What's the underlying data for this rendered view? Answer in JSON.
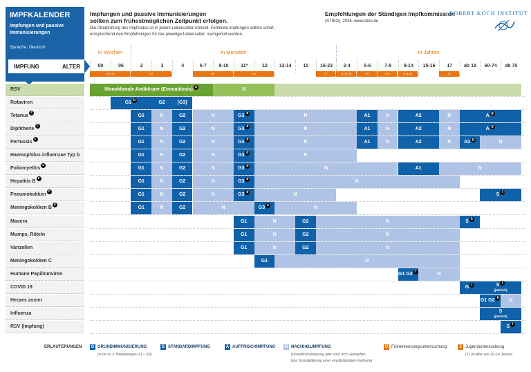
{
  "brand": {
    "title": "IMPFKALENDER",
    "subtitle": "Impfungen und passive Immunisierungen",
    "language": "Sprache: Deutsch"
  },
  "agebar": {
    "left": "IMPFUNG",
    "right": "ALTER"
  },
  "intro": {
    "headline1": "Impfungen und passive Immunisierungen",
    "headline2": "sollten zum frühestmöglichen Zeitpunkt erfolgen.",
    "text1": "Die Überprüfung des Impfstatus ist in jedem Lebensalter sinnvoll. Fehlende Impfungen sollten sofort,",
    "text2": "entsprechend den Empfehlungen für das jeweilige Lebensalter, nachgeholt werden."
  },
  "stiko": {
    "title": "Empfehlungen der Ständigen Impfkommission",
    "sub": "(STIKO), 2025. www.stiko.de"
  },
  "rki": {
    "name": "ROBERT KOCH INSTITUT"
  },
  "groups": [
    {
      "label": "in Wochen",
      "from": 0,
      "to": 1
    },
    {
      "label": "in Monaten",
      "from": 2,
      "to": 11
    },
    {
      "label": "in Jahren",
      "from": 12,
      "to": 20
    }
  ],
  "columns": [
    "00",
    "06",
    "2",
    "3",
    "4",
    "5-7",
    "8-10",
    "11*",
    "12",
    "13-14",
    "15",
    "16-23",
    "2-4",
    "5-6",
    "7-8",
    "9-14",
    "15-16",
    "17",
    "ab 18",
    "60-74",
    "ab 75"
  ],
  "exams": [
    {
      "label": "U2/U3",
      "from": 0,
      "to": 1
    },
    {
      "label": "U4",
      "from": 2,
      "to": 3
    },
    {
      "label": "U5",
      "from": 5,
      "to": 6
    },
    {
      "label": "U6",
      "from": 7,
      "to": 8
    },
    {
      "label": "U7",
      "from": 11,
      "to": 11
    },
    {
      "label": "U7a/U8",
      "from": 12,
      "to": 12
    },
    {
      "label": "U9",
      "from": 13,
      "to": 13
    },
    {
      "label": "U10",
      "from": 14,
      "to": 14
    },
    {
      "label": "U11/J1",
      "from": 15,
      "to": 15
    },
    {
      "label": "J2",
      "from": 17,
      "to": 17
    }
  ],
  "rows": [
    {
      "name": "RSV",
      "fn": "",
      "green": true,
      "segs": [
        {
          "t": "GR1",
          "label": "Monoklonale Antikörper (Einmaldosis)",
          "fn": "a",
          "from": 0,
          "to": 5
        },
        {
          "t": "GR2",
          "label": "N",
          "from": 6,
          "to": 8
        },
        {
          "t": "GR3",
          "label": "",
          "from": 9,
          "to": 20
        }
      ]
    },
    {
      "name": "Rotaviren",
      "fn": "",
      "segs": [
        {
          "t": "G",
          "label": "G1",
          "fn": "b",
          "from": 1,
          "to": 2
        },
        {
          "t": "G",
          "label": "G2",
          "from": 3,
          "to": 3
        },
        {
          "t": "G",
          "label": "(G3)",
          "from": 4,
          "to": 4
        }
      ]
    },
    {
      "name": "Tetanus",
      "fn": "c",
      "segs": [
        {
          "t": "G",
          "label": "G1",
          "from": 2,
          "to": 2
        },
        {
          "t": "N",
          "label": "N",
          "from": 3,
          "to": 3
        },
        {
          "t": "G",
          "label": "G2",
          "from": 4,
          "to": 4
        },
        {
          "t": "N",
          "label": "N",
          "from": 5,
          "to": 6
        },
        {
          "t": "G",
          "label": "G3",
          "fn": "d",
          "from": 7,
          "to": 7
        },
        {
          "t": "N",
          "label": "N",
          "from": 8,
          "to": 12
        },
        {
          "t": "A",
          "label": "A1",
          "from": 13,
          "to": 13
        },
        {
          "t": "N",
          "label": "N",
          "from": 14,
          "to": 14
        },
        {
          "t": "A",
          "label": "A2",
          "from": 15,
          "to": 16
        },
        {
          "t": "N",
          "label": "N",
          "from": 17,
          "to": 17
        },
        {
          "t": "A",
          "label": "A",
          "fn": "g",
          "from": 18,
          "to": 20
        }
      ]
    },
    {
      "name": "Diphtherie",
      "fn": "c",
      "segs": [
        {
          "t": "G",
          "label": "G1",
          "from": 2,
          "to": 2
        },
        {
          "t": "N",
          "label": "N",
          "from": 3,
          "to": 3
        },
        {
          "t": "G",
          "label": "G2",
          "from": 4,
          "to": 4
        },
        {
          "t": "N",
          "label": "N",
          "from": 5,
          "to": 6
        },
        {
          "t": "G",
          "label": "G3",
          "fn": "d",
          "from": 7,
          "to": 7
        },
        {
          "t": "N",
          "label": "N",
          "from": 8,
          "to": 12
        },
        {
          "t": "A",
          "label": "A1",
          "from": 13,
          "to": 13
        },
        {
          "t": "N",
          "label": "N",
          "from": 14,
          "to": 14
        },
        {
          "t": "A",
          "label": "A2",
          "from": 15,
          "to": 16
        },
        {
          "t": "N",
          "label": "N",
          "from": 17,
          "to": 17
        },
        {
          "t": "A",
          "label": "A",
          "fn": "g",
          "from": 18,
          "to": 20
        }
      ]
    },
    {
      "name": "Pertussis",
      "fn": "c",
      "segs": [
        {
          "t": "G",
          "label": "G1",
          "from": 2,
          "to": 2
        },
        {
          "t": "N",
          "label": "N",
          "from": 3,
          "to": 3
        },
        {
          "t": "G",
          "label": "G2",
          "from": 4,
          "to": 4
        },
        {
          "t": "N",
          "label": "N",
          "from": 5,
          "to": 6
        },
        {
          "t": "G",
          "label": "G3",
          "fn": "d",
          "from": 7,
          "to": 7
        },
        {
          "t": "N",
          "label": "N",
          "from": 8,
          "to": 12
        },
        {
          "t": "A",
          "label": "A1",
          "from": 13,
          "to": 13
        },
        {
          "t": "N",
          "label": "N",
          "from": 14,
          "to": 14
        },
        {
          "t": "A",
          "label": "A2",
          "from": 15,
          "to": 16
        },
        {
          "t": "N",
          "label": "N",
          "from": 17,
          "to": 17
        },
        {
          "t": "A",
          "label": "A3",
          "fn": "g",
          "from": 18,
          "to": 18
        },
        {
          "t": "N",
          "label": "N",
          "from": 19,
          "to": 20
        }
      ]
    },
    {
      "name": "Haemophilus influenzae Typ b",
      "fn": "c",
      "segs": [
        {
          "t": "G",
          "label": "G1",
          "from": 2,
          "to": 2
        },
        {
          "t": "N",
          "label": "N",
          "from": 3,
          "to": 3
        },
        {
          "t": "G",
          "label": "G2",
          "from": 4,
          "to": 4
        },
        {
          "t": "N",
          "label": "N",
          "from": 5,
          "to": 6
        },
        {
          "t": "G",
          "label": "G3",
          "fn": "d",
          "from": 7,
          "to": 7
        },
        {
          "t": "N",
          "label": "N",
          "from": 8,
          "to": 12
        }
      ]
    },
    {
      "name": "Poliomyelitis",
      "fn": "c",
      "segs": [
        {
          "t": "G",
          "label": "G1",
          "from": 2,
          "to": 2
        },
        {
          "t": "N",
          "label": "N",
          "from": 3,
          "to": 3
        },
        {
          "t": "G",
          "label": "G2",
          "from": 4,
          "to": 4
        },
        {
          "t": "N",
          "label": "N",
          "from": 5,
          "to": 6
        },
        {
          "t": "G",
          "label": "G3",
          "fn": "d",
          "from": 7,
          "to": 7
        },
        {
          "t": "N",
          "label": "N",
          "from": 8,
          "to": 14
        },
        {
          "t": "A",
          "label": "A1",
          "from": 15,
          "to": 16
        },
        {
          "t": "N",
          "label": "N",
          "from": 17,
          "to": 20
        }
      ]
    },
    {
      "name": "Hepatitis B",
      "fn": "c",
      "segs": [
        {
          "t": "G",
          "label": "G1",
          "from": 2,
          "to": 2
        },
        {
          "t": "N",
          "label": "N",
          "from": 3,
          "to": 3
        },
        {
          "t": "G",
          "label": "G2",
          "from": 4,
          "to": 4
        },
        {
          "t": "N",
          "label": "N",
          "from": 5,
          "to": 6
        },
        {
          "t": "G",
          "label": "G3",
          "fn": "d",
          "from": 7,
          "to": 7
        },
        {
          "t": "N",
          "label": "N",
          "from": 8,
          "to": 17
        }
      ]
    },
    {
      "name": "Pneumokokken",
      "fn": "c",
      "segs": [
        {
          "t": "G",
          "label": "G1",
          "from": 2,
          "to": 2
        },
        {
          "t": "N",
          "label": "N",
          "from": 3,
          "to": 3
        },
        {
          "t": "G",
          "label": "G2",
          "from": 4,
          "to": 4
        },
        {
          "t": "N",
          "label": "N",
          "from": 5,
          "to": 6
        },
        {
          "t": "G",
          "label": "G3",
          "fn": "d",
          "from": 7,
          "to": 7
        },
        {
          "t": "N",
          "label": "N",
          "from": 8,
          "to": 11
        },
        {
          "t": "S",
          "label": "S",
          "fn": "i",
          "from": 19,
          "to": 20
        }
      ]
    },
    {
      "name": "Meningokokken B",
      "fn": "e",
      "segs": [
        {
          "t": "G",
          "label": "G1",
          "from": 2,
          "to": 2
        },
        {
          "t": "N",
          "label": "N",
          "from": 3,
          "to": 3
        },
        {
          "t": "G",
          "label": "G2",
          "from": 4,
          "to": 4
        },
        {
          "t": "N",
          "label": "N",
          "from": 5,
          "to": 7
        },
        {
          "t": "G",
          "label": "G3",
          "fn": "e",
          "from": 8,
          "to": 8
        },
        {
          "t": "N",
          "label": "N",
          "from": 9,
          "to": 12
        }
      ]
    },
    {
      "name": "Masern",
      "fn": "",
      "segs": [
        {
          "t": "G",
          "label": "G1",
          "from": 7,
          "to": 7
        },
        {
          "t": "N",
          "label": "N",
          "from": 8,
          "to": 9
        },
        {
          "t": "G",
          "label": "G2",
          "from": 10,
          "to": 10
        },
        {
          "t": "N",
          "label": "N",
          "from": 11,
          "to": 17
        },
        {
          "t": "S",
          "label": "S",
          "fn": "h",
          "from": 18,
          "to": 18
        }
      ]
    },
    {
      "name": "Mumps, Röteln",
      "fn": "",
      "segs": [
        {
          "t": "G",
          "label": "G1",
          "from": 7,
          "to": 7
        },
        {
          "t": "N",
          "label": "N",
          "from": 8,
          "to": 9
        },
        {
          "t": "G",
          "label": "G2",
          "from": 10,
          "to": 10
        },
        {
          "t": "N",
          "label": "N",
          "from": 11,
          "to": 17
        }
      ]
    },
    {
      "name": "Varizellen",
      "fn": "",
      "segs": [
        {
          "t": "G",
          "label": "G1",
          "from": 7,
          "to": 7
        },
        {
          "t": "N",
          "label": "N",
          "from": 8,
          "to": 9
        },
        {
          "t": "G",
          "label": "G2",
          "from": 10,
          "to": 10
        },
        {
          "t": "N",
          "label": "N",
          "from": 11,
          "to": 17
        }
      ]
    },
    {
      "name": "Meningokokken C",
      "fn": "",
      "segs": [
        {
          "t": "G",
          "label": "G1",
          "from": 8,
          "to": 8
        },
        {
          "t": "N",
          "label": "N",
          "from": 9,
          "to": 17
        }
      ]
    },
    {
      "name": "Humane Papillomviren",
      "fn": "",
      "segs": [
        {
          "t": "G",
          "label": "G1 G2",
          "fn": "f",
          "from": 15,
          "to": 15
        },
        {
          "t": "N",
          "label": "N",
          "from": 16,
          "to": 17
        }
      ]
    },
    {
      "name": "COVID 19",
      "fn": "",
      "segs": [
        {
          "t": "G",
          "label": "G",
          "fn": "j",
          "from": 18,
          "to": 18
        },
        {
          "t": "S",
          "label": "S",
          "fn": "j",
          "sub": "(jährlich)",
          "from": 19,
          "to": 20
        }
      ]
    },
    {
      "name": "Herpes zoster",
      "fn": "",
      "segs": [
        {
          "t": "G",
          "label": "G1 G2",
          "fn": "k",
          "from": 19,
          "to": 19
        },
        {
          "t": "N",
          "label": "N",
          "from": 20,
          "to": 20
        }
      ]
    },
    {
      "name": "Influenza",
      "fn": "",
      "segs": [
        {
          "t": "S",
          "label": "S",
          "sub": "(jährlich)",
          "from": 19,
          "to": 20
        }
      ]
    },
    {
      "name": "RSV (Impfung)",
      "fn": "",
      "segs": [
        {
          "t": "S",
          "label": "S",
          "fn": "l",
          "from": 20,
          "to": 20
        }
      ]
    }
  ],
  "legend": {
    "title": "ERLÄUTERUNGEN",
    "g": {
      "box": "G",
      "label": "GRUNDIMMUNISIERUNG",
      "sub": "(in bis zu 3 Teilimpfungen G1 – G3)"
    },
    "s": {
      "box": "S",
      "label": "STANDARDIMPFUNG"
    },
    "a": {
      "box": "A",
      "label": "AUFFRISCHIMPFUNG"
    },
    "n": {
      "box": "N",
      "label": "NACHHOLIMPFUNG",
      "sub1": "(Grundimmunisierung aller noch nicht Geimpften",
      "sub2": "bzw. Komplettierung einer unvollständigen Impfserie)"
    },
    "u": {
      "box": "U",
      "label": "Früherkennungsuntersuchung"
    },
    "j": {
      "box": "J",
      "label": "Jugenduntersuchung",
      "sub": "(J1 im Alter von 12–14 Jahren)"
    }
  },
  "colors": {
    "dark_blue": "#0f61a9",
    "light_blue": "#aec3e6",
    "orange": "#e87511",
    "green": "#6aa231"
  }
}
